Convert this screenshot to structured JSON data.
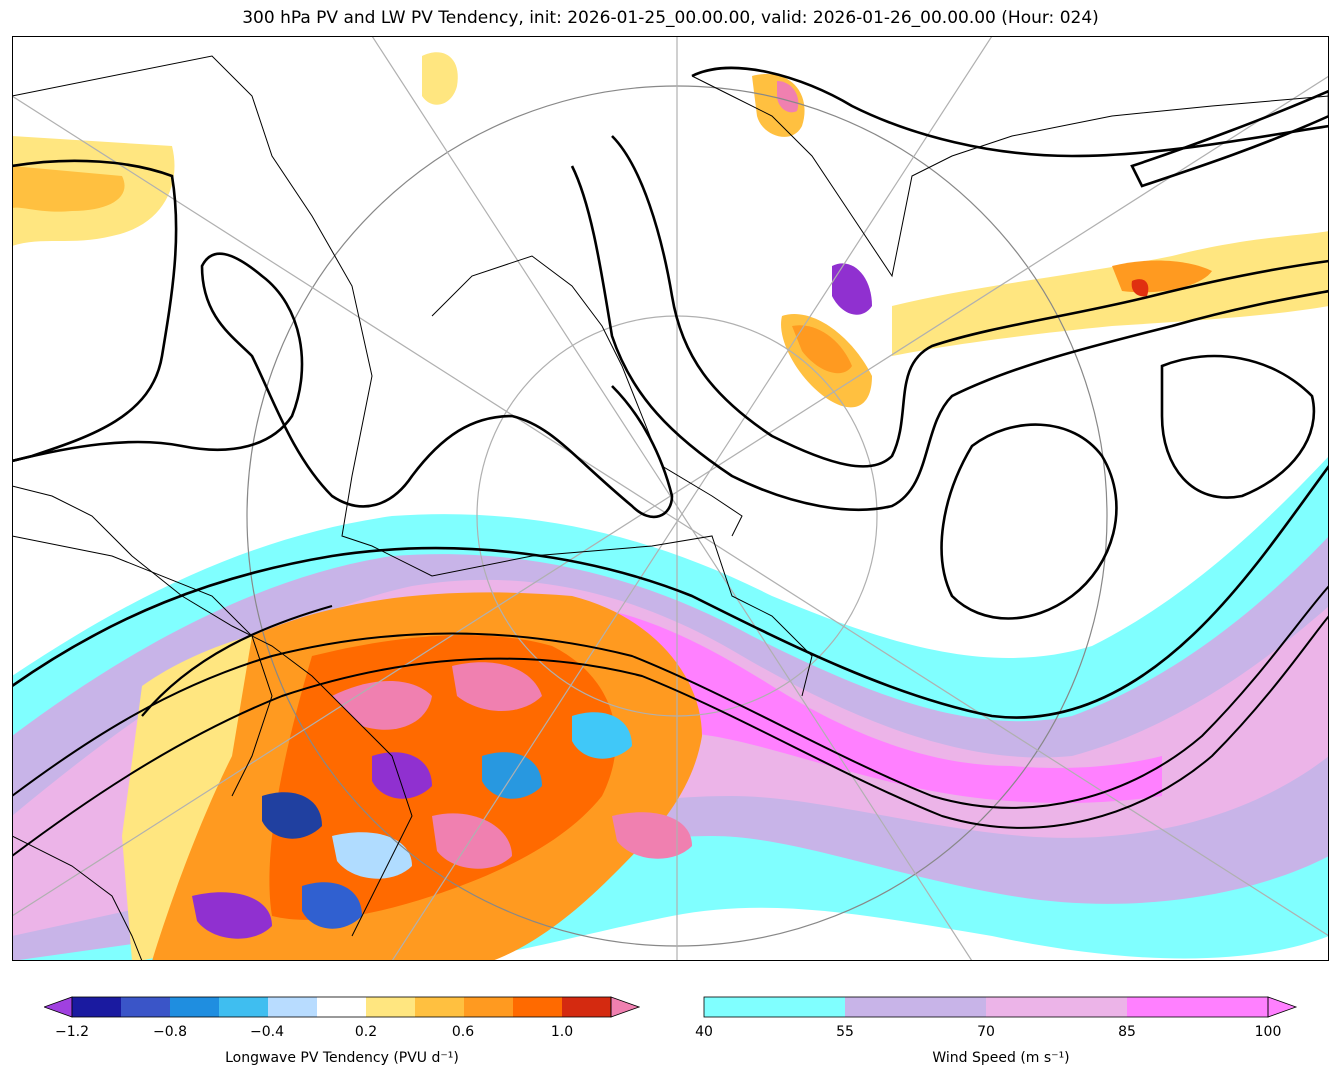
{
  "title": "300 hPa PV and LW PV Tendency, init: 2026-01-25_00.00.00, valid: 2026-01-26_00.00.00 (Hour: 024)",
  "colors": {
    "land_outline": "#000000",
    "pv_contour": "#000000",
    "graticule": "#b0b0b0",
    "wind": [
      "#80ffff",
      "#c8b4e8",
      "#ecb4e8",
      "#ff80ff"
    ],
    "pv_tendency_pos": [
      "#ffe680",
      "#ffc040",
      "#ff9a20",
      "#ff6a00",
      "#e03010",
      "#f080b0"
    ],
    "pv_tendency_neg": [
      "#9030d0",
      "#2040a0",
      "#3060d0",
      "#2898e0",
      "#40c8f8",
      "#b0dcff"
    ]
  },
  "colorbar_pv": {
    "label": "Longwave PV Tendency (PVU d⁻¹)",
    "ticks": [
      "−1.2",
      "−0.8",
      "−0.4",
      "0.2",
      "0.6",
      "1.0"
    ],
    "colors": [
      "#1a1aa0",
      "#3a55c8",
      "#1f8ee0",
      "#3fbef0",
      "#b8dcff",
      "#ffffff",
      "#ffe680",
      "#ffc040",
      "#ff9a20",
      "#ff6a00",
      "#d42a10"
    ],
    "extend_min_color": "#a040e0",
    "extend_max_color": "#f080b0"
  },
  "colorbar_wind": {
    "label": "Wind Speed (m s⁻¹)",
    "ticks": [
      "40",
      "55",
      "70",
      "85",
      "100"
    ],
    "colors": [
      "#80ffff",
      "#c8b4e8",
      "#ecb4e8",
      "#ff80ff"
    ],
    "extend_max_color": "#ff80ff"
  }
}
